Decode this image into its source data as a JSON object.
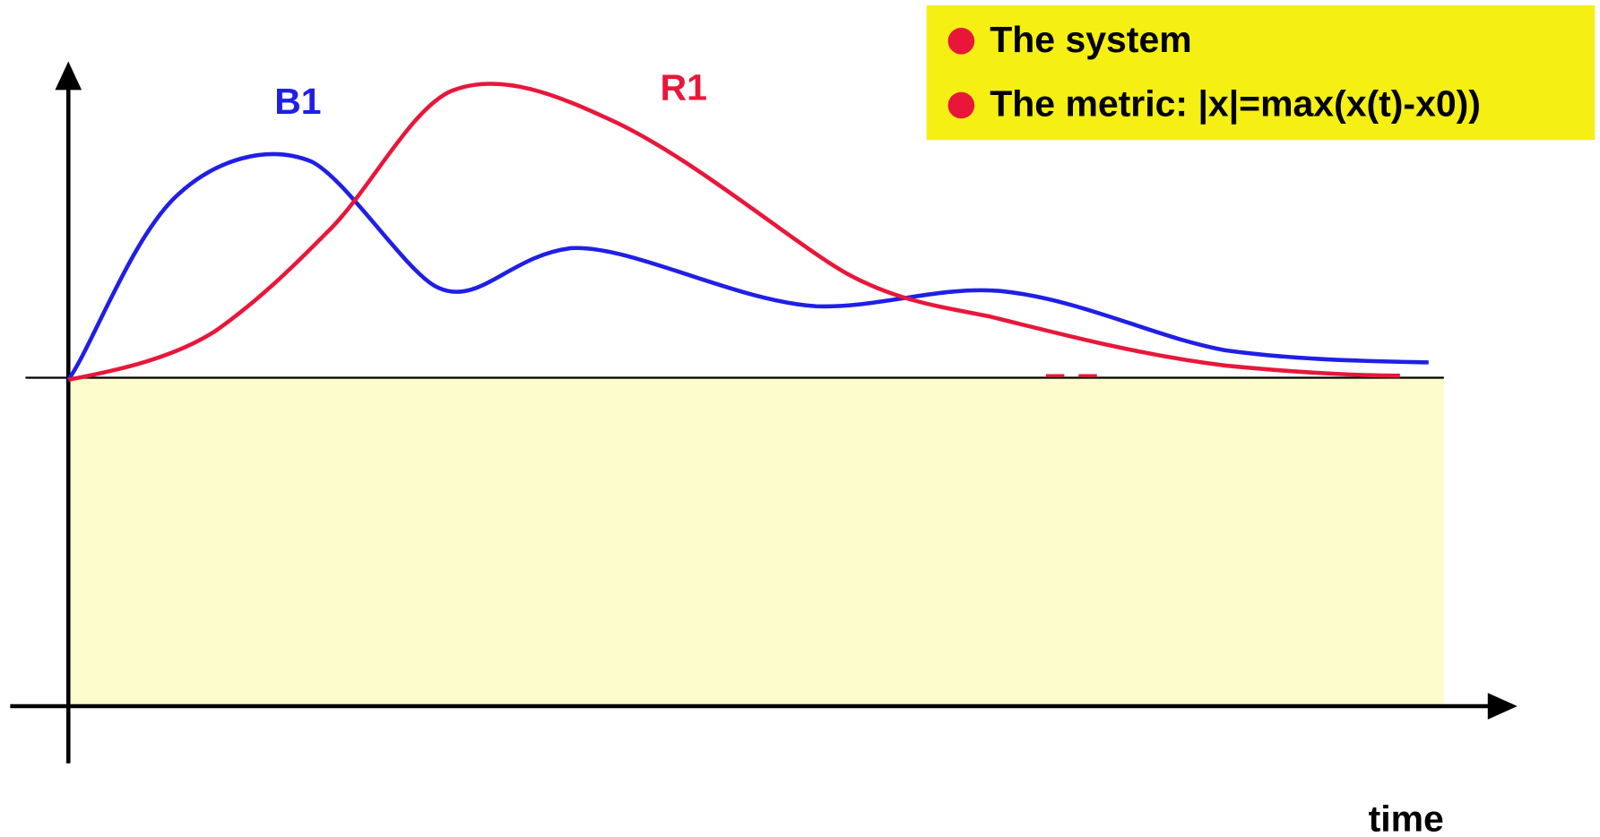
{
  "curves": {
    "blue_label": "B1",
    "red_label": "R1"
  },
  "axis": {
    "x_label": "time"
  },
  "legend": {
    "items": [
      "The system",
      "The metric: |x|=max(x(t)-x0))"
    ]
  }
}
